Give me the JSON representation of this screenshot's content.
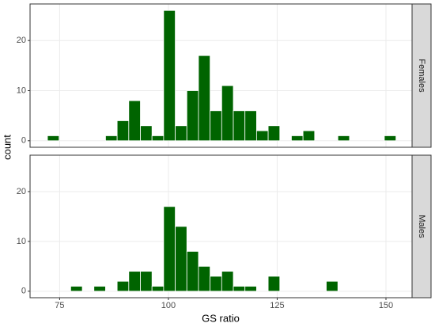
{
  "chart_data": [
    {
      "type": "histogram",
      "facet": "Females",
      "y_label": "count",
      "color": "#006400",
      "grid": true,
      "bins": [
        72.2,
        74.87,
        77.54,
        80.21,
        82.88,
        85.55,
        88.22,
        90.89,
        93.56,
        96.23,
        98.9,
        101.57,
        104.24,
        106.91,
        109.58,
        112.25,
        114.92,
        117.59,
        120.26,
        122.93,
        125.6,
        128.27,
        130.94,
        133.61,
        136.28,
        138.95,
        141.62,
        144.29,
        146.96,
        149.63,
        152.3
      ],
      "values": [
        1,
        0,
        0,
        0,
        0,
        1,
        4,
        8,
        3,
        1,
        26,
        3,
        10,
        17,
        6,
        11,
        6,
        6,
        2,
        3,
        0,
        1,
        2,
        0,
        0,
        1,
        0,
        0,
        0,
        1
      ],
      "xlim": [
        68.2,
        156
      ],
      "ylim": [
        -1.3,
        27.3
      ],
      "yticks": [
        0,
        10,
        20
      ]
    },
    {
      "type": "histogram",
      "facet": "Males",
      "x_label": "GS ratio",
      "color": "#006400",
      "grid": true,
      "bins": [
        72.2,
        74.87,
        77.54,
        80.21,
        82.88,
        85.55,
        88.22,
        90.89,
        93.56,
        96.23,
        98.9,
        101.57,
        104.24,
        106.91,
        109.58,
        112.25,
        114.92,
        117.59,
        120.26,
        122.93,
        125.6,
        128.27,
        130.94,
        133.61,
        136.28,
        138.95,
        141.62,
        144.29,
        146.96,
        149.63,
        152.3
      ],
      "values": [
        0,
        0,
        1,
        0,
        1,
        0,
        2,
        4,
        4,
        1,
        17,
        13,
        8,
        5,
        3,
        4,
        1,
        1,
        0,
        3,
        0,
        0,
        0,
        0,
        2,
        0,
        0,
        0,
        0,
        0
      ],
      "xlim": [
        68.2,
        156
      ],
      "ylim": [
        -1.3,
        27.3
      ],
      "yticks": [
        0,
        10,
        20
      ],
      "xticks": [
        75,
        100,
        125,
        150
      ]
    }
  ]
}
